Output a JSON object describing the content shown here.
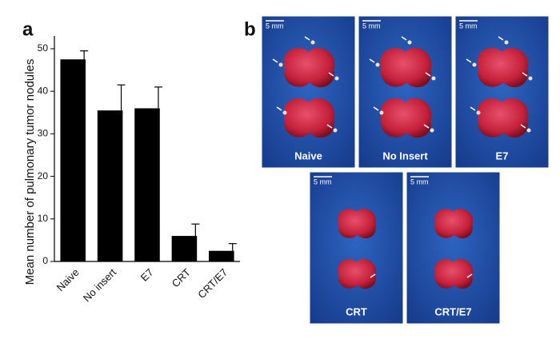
{
  "chart_data": {
    "type": "bar",
    "panel_label": "a",
    "ylabel": "Mean number of pulmonary tumor nodules",
    "categories": [
      "Naive",
      "No insert",
      "E7",
      "CRT",
      "CRT/E7"
    ],
    "values": [
      47.5,
      35.5,
      36,
      6,
      2.5
    ],
    "errors": [
      2,
      6,
      5,
      2.8,
      1.7
    ],
    "color": "#000000",
    "ylim": [
      0,
      53
    ],
    "yticks": [
      0,
      10,
      20,
      30,
      40,
      50
    ],
    "grid": false
  },
  "panel_b": {
    "label": "b",
    "images": [
      {
        "label": "Naive",
        "scale": "5 mm"
      },
      {
        "label": "No Insert",
        "scale": "5 mm"
      },
      {
        "label": "E7",
        "scale": "5 mm"
      },
      {
        "label": "CRT",
        "scale": "5 mm"
      },
      {
        "label": "CRT/E7",
        "scale": "5 mm"
      }
    ]
  }
}
